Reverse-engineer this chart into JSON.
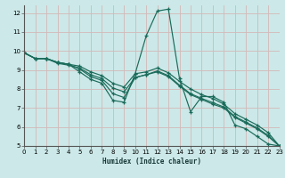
{
  "xlabel": "Humidex (Indice chaleur)",
  "background_color": "#cce8e8",
  "grid_color": "#d4b8b8",
  "line_color": "#1a6b5a",
  "xlim": [
    0,
    23
  ],
  "ylim": [
    5,
    12.4
  ],
  "yticks": [
    5,
    6,
    7,
    8,
    9,
    10,
    11,
    12
  ],
  "xticks": [
    0,
    1,
    2,
    3,
    4,
    5,
    6,
    7,
    8,
    9,
    10,
    11,
    12,
    13,
    14,
    15,
    16,
    17,
    18,
    19,
    20,
    21,
    22,
    23
  ],
  "series": [
    {
      "x": [
        0,
        1,
        2,
        3,
        4,
        5,
        6,
        7,
        8,
        9,
        10,
        11,
        12,
        13,
        14,
        15,
        16,
        17,
        18,
        19,
        20,
        21,
        22,
        23
      ],
      "y": [
        9.9,
        9.6,
        9.6,
        9.4,
        9.3,
        8.9,
        8.5,
        8.3,
        7.4,
        7.3,
        8.8,
        10.8,
        12.1,
        12.2,
        8.55,
        6.8,
        7.6,
        7.6,
        7.3,
        6.1,
        5.9,
        5.5,
        5.1,
        5.0
      ]
    },
    {
      "x": [
        0,
        1,
        2,
        3,
        4,
        5,
        6,
        7,
        8,
        9,
        10,
        11,
        12,
        13,
        14,
        15,
        16,
        17,
        18,
        19,
        20,
        21,
        22,
        23
      ],
      "y": [
        9.9,
        9.6,
        9.6,
        9.4,
        9.3,
        9.2,
        8.9,
        8.7,
        8.3,
        8.1,
        8.8,
        8.9,
        9.1,
        8.85,
        8.4,
        8.0,
        7.7,
        7.5,
        7.2,
        6.7,
        6.4,
        6.1,
        5.7,
        5.0
      ]
    },
    {
      "x": [
        0,
        1,
        2,
        3,
        4,
        5,
        6,
        7,
        8,
        9,
        10,
        11,
        12,
        13,
        14,
        15,
        16,
        17,
        18,
        19,
        20,
        21,
        22,
        23
      ],
      "y": [
        9.9,
        9.6,
        9.6,
        9.35,
        9.25,
        9.1,
        8.75,
        8.55,
        8.05,
        7.85,
        8.6,
        8.75,
        8.95,
        8.7,
        8.2,
        7.75,
        7.5,
        7.28,
        7.05,
        6.55,
        6.25,
        5.95,
        5.55,
        5.0
      ]
    },
    {
      "x": [
        0,
        1,
        2,
        3,
        4,
        5,
        6,
        7,
        8,
        9,
        10,
        11,
        12,
        13,
        14,
        15,
        16,
        17,
        18,
        19,
        20,
        21,
        22,
        23
      ],
      "y": [
        9.9,
        9.6,
        9.6,
        9.4,
        9.3,
        9.05,
        8.65,
        8.45,
        7.75,
        7.55,
        8.6,
        8.75,
        8.9,
        8.65,
        8.15,
        7.7,
        7.45,
        7.2,
        7.0,
        6.5,
        6.2,
        5.9,
        5.5,
        5.0
      ]
    }
  ]
}
